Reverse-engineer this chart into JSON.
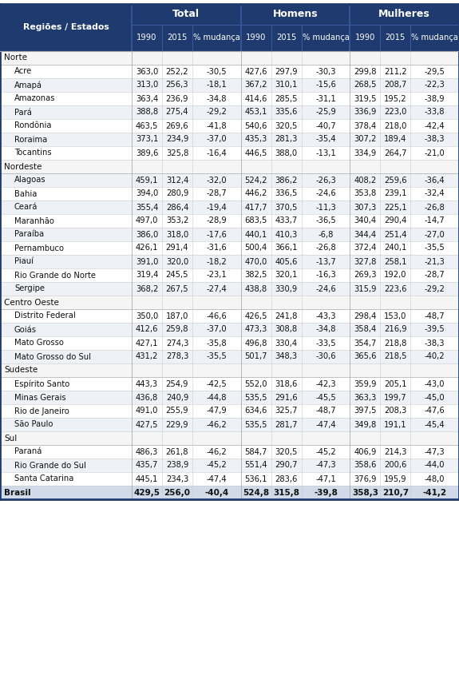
{
  "col_header1": "Regiões / Estados",
  "col_groups": [
    "Total",
    "Homens",
    "Mulheres"
  ],
  "col_subheaders": [
    "1990",
    "2015",
    "% mudança"
  ],
  "regions": [
    {
      "name": "Norte",
      "states": [
        [
          "Acre",
          363.0,
          252.2,
          -30.5,
          427.6,
          297.9,
          -30.3,
          299.8,
          211.2,
          -29.5
        ],
        [
          "Amapá",
          313.0,
          256.3,
          -18.1,
          367.2,
          310.1,
          -15.6,
          268.5,
          208.7,
          -22.3
        ],
        [
          "Amazonas",
          363.4,
          236.9,
          -34.8,
          414.6,
          285.5,
          -31.1,
          319.5,
          195.2,
          -38.9
        ],
        [
          "Pará",
          388.8,
          275.4,
          -29.2,
          453.1,
          335.6,
          -25.9,
          336.9,
          223.0,
          -33.8
        ],
        [
          "Rondônia",
          463.5,
          269.6,
          -41.8,
          540.6,
          320.5,
          -40.7,
          378.4,
          218.0,
          -42.4
        ],
        [
          "Roraima",
          373.1,
          234.9,
          -37.0,
          435.3,
          281.3,
          -35.4,
          307.2,
          189.4,
          -38.3
        ],
        [
          "Tocantins",
          389.6,
          325.8,
          -16.4,
          446.5,
          388.0,
          -13.1,
          334.9,
          264.7,
          -21.0
        ]
      ]
    },
    {
      "name": "Nordeste",
      "states": [
        [
          "Alagoas",
          459.1,
          312.4,
          -32.0,
          524.2,
          386.2,
          -26.3,
          408.2,
          259.6,
          -36.4
        ],
        [
          "Bahia",
          394.0,
          280.9,
          -28.7,
          446.2,
          336.5,
          -24.6,
          353.8,
          239.1,
          -32.4
        ],
        [
          "Ceará",
          355.4,
          286.4,
          -19.4,
          417.7,
          370.5,
          -11.3,
          307.3,
          225.1,
          -26.8
        ],
        [
          "Maranhão",
          497.0,
          353.2,
          -28.9,
          683.5,
          433.7,
          -36.5,
          340.4,
          290.4,
          -14.7
        ],
        [
          "Paraíba",
          386.0,
          318.0,
          -17.6,
          440.1,
          410.3,
          -6.8,
          344.4,
          251.4,
          -27.0
        ],
        [
          "Pernambuco",
          426.1,
          291.4,
          -31.6,
          500.4,
          366.1,
          -26.8,
          372.4,
          240.1,
          -35.5
        ],
        [
          "Piauí",
          391.0,
          320.0,
          -18.2,
          470.0,
          405.6,
          -13.7,
          327.8,
          258.1,
          -21.3
        ],
        [
          "Rio Grande do Norte",
          319.4,
          245.5,
          -23.1,
          382.5,
          320.1,
          -16.3,
          269.3,
          192.0,
          -28.7
        ],
        [
          "Sergipe",
          368.2,
          267.5,
          -27.4,
          438.8,
          330.9,
          -24.6,
          315.9,
          223.6,
          -29.2
        ]
      ]
    },
    {
      "name": "Centro Oeste",
      "states": [
        [
          "Distrito Federal",
          350.0,
          187.0,
          -46.6,
          426.5,
          241.8,
          -43.3,
          298.4,
          153.0,
          -48.7
        ],
        [
          "Goiás",
          412.6,
          259.8,
          -37.0,
          473.3,
          308.8,
          -34.8,
          358.4,
          216.9,
          -39.5
        ],
        [
          "Mato Grosso",
          427.1,
          274.3,
          -35.8,
          496.8,
          330.4,
          -33.5,
          354.7,
          218.8,
          -38.3
        ],
        [
          "Mato Grosso do Sul",
          431.2,
          278.3,
          -35.5,
          501.7,
          348.3,
          -30.6,
          365.6,
          218.5,
          -40.2
        ]
      ]
    },
    {
      "name": "Sudeste",
      "states": [
        [
          "Espírito Santo",
          443.3,
          254.9,
          -42.5,
          552.0,
          318.6,
          -42.3,
          359.9,
          205.1,
          -43.0
        ],
        [
          "Minas Gerais",
          436.8,
          240.9,
          -44.8,
          535.5,
          291.6,
          -45.5,
          363.3,
          199.7,
          -45.0
        ],
        [
          "Rio de Janeiro",
          491.0,
          255.9,
          -47.9,
          634.6,
          325.7,
          -48.7,
          397.5,
          208.3,
          -47.6
        ],
        [
          "São Paulo",
          427.5,
          229.9,
          -46.2,
          535.5,
          281.7,
          -47.4,
          349.8,
          191.1,
          -45.4
        ]
      ]
    },
    {
      "name": "Sul",
      "states": [
        [
          "Paraná",
          486.3,
          261.8,
          -46.2,
          584.7,
          320.5,
          -45.2,
          406.9,
          214.3,
          -47.3
        ],
        [
          "Rio Grande do Sul",
          435.7,
          238.9,
          -45.2,
          551.4,
          290.7,
          -47.3,
          358.6,
          200.6,
          -44.0
        ],
        [
          "Santa Catarina",
          445.1,
          234.3,
          -47.4,
          536.1,
          283.6,
          -47.1,
          376.9,
          195.9,
          -48.0
        ]
      ]
    }
  ],
  "brasil_row": [
    "Brasil",
    429.5,
    256.0,
    -40.4,
    524.8,
    315.8,
    -39.8,
    358.3,
    210.7,
    -41.2
  ],
  "header_bg": "#1e3a6e",
  "header_text": "#ffffff",
  "row_alt1": "#ffffff",
  "row_alt2": "#eef2f7",
  "region_row_bg": "#f5f5f5",
  "brasil_row_bg": "#d0dae8",
  "line_color_light": "#cccccc",
  "line_color_mid": "#aaaaaa",
  "line_color_header": "#3a5a9e"
}
